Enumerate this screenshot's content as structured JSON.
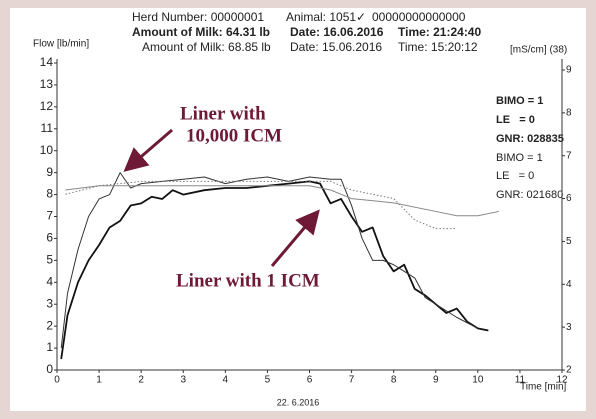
{
  "chart_data": {
    "type": "line",
    "header": [
      "Herd Number: 00000001",
      "Animal: 1051✓",
      "00000000000000"
    ],
    "current": [
      "Amount of Milk: 64.31 lb",
      "Date: 16.06.2016",
      "Time: 21:24:40"
    ],
    "previous": [
      "Amount of Milk: 68.85 lb",
      "Date: 15.06.2016",
      "Time: 15:20:12"
    ],
    "ylabel": "Flow [lb/min]",
    "y2label": "[mS/cm] (38)",
    "xlabel": "Time [min]",
    "info": [
      "BIMO = 1",
      "LE   = 0",
      "GNR: 028835",
      "BIMO = 1",
      "LE   = 0",
      "GNR: 021680"
    ],
    "annotations": [
      "Liner with",
      "10,000 ICM",
      "Liner with 1 ICM"
    ],
    "footer": "22. 6.2016",
    "xlim": [
      0,
      12
    ],
    "xticks": [
      0,
      1,
      2,
      3,
      4,
      5,
      6,
      7,
      8,
      9,
      10,
      11,
      12
    ],
    "ylim": [
      0,
      14
    ],
    "yticks": [
      0,
      1,
      2,
      3,
      4,
      5,
      6,
      7,
      8,
      9,
      10,
      11,
      12,
      13,
      14
    ],
    "y2lim": [
      2,
      9
    ],
    "y2ticks": [
      2,
      3,
      4,
      5,
      6,
      7,
      8,
      9
    ],
    "series": [
      {
        "color": "#111111",
        "line_width": 1.8,
        "style": "solid",
        "x": [
          0.1,
          0.25,
          0.5,
          0.75,
          1,
          1.25,
          1.5,
          1.75,
          2,
          2.25,
          2.5,
          2.75,
          3,
          3.5,
          4,
          4.5,
          5,
          5.5,
          6,
          6.25,
          6.5,
          6.75,
          7,
          7.25,
          7.5,
          7.75,
          8,
          8.25,
          8.5,
          8.75,
          9,
          9.25,
          9.5,
          9.75,
          10,
          10.25
        ],
        "values": [
          0.5,
          2.5,
          4,
          5,
          5.7,
          6.5,
          6.8,
          7.5,
          7.6,
          7.9,
          7.8,
          8.2,
          8,
          8.2,
          8.3,
          8.3,
          8.4,
          8.5,
          8.6,
          8.5,
          7.6,
          7.8,
          7,
          6.3,
          6.5,
          5.2,
          4.5,
          4.8,
          3.7,
          3.4,
          3,
          2.6,
          2.8,
          2.2,
          1.9,
          1.8
        ]
      },
      {
        "color": "#333333",
        "line_width": 1,
        "style": "solid",
        "x": [
          0.1,
          0.25,
          0.5,
          0.75,
          1,
          1.25,
          1.5,
          1.75,
          2,
          2.5,
          3,
          3.5,
          4,
          4.5,
          5,
          5.5,
          6,
          6.5,
          6.75,
          7,
          7.25,
          7.5,
          7.75,
          8,
          8.25,
          8.5,
          8.75,
          9,
          9.5,
          10
        ],
        "values": [
          1,
          3.5,
          5.5,
          7,
          7.8,
          8,
          9,
          8.3,
          8.5,
          8.6,
          8.7,
          8.8,
          8.5,
          8.7,
          8.8,
          8.6,
          8.8,
          8.7,
          8.7,
          7.5,
          6,
          5,
          5,
          4.8,
          4.5,
          4.2,
          3.3,
          3,
          2.4,
          1.9
        ]
      },
      {
        "color": "#888888",
        "line_width": 1,
        "style": "solid",
        "axis": "y2",
        "x": [
          0.2,
          1,
          2,
          3,
          4,
          5,
          6,
          6.5,
          7,
          8,
          9,
          9.5,
          10,
          10.5
        ],
        "values": [
          6.2,
          6.3,
          6.3,
          6.3,
          6.3,
          6.3,
          6.3,
          6.2,
          6.0,
          5.9,
          5.7,
          5.6,
          5.6,
          5.7
        ]
      },
      {
        "color": "#777777",
        "line_width": 1,
        "style": "dotted",
        "axis": "y2",
        "x": [
          0.2,
          1,
          2,
          3,
          4,
          5,
          6,
          6.5,
          7,
          8,
          8.5,
          9,
          9.5
        ],
        "values": [
          6.1,
          6.3,
          6.4,
          6.4,
          6.4,
          6.4,
          6.4,
          6.4,
          6.2,
          6,
          5.5,
          5.3,
          5.3
        ]
      }
    ]
  }
}
